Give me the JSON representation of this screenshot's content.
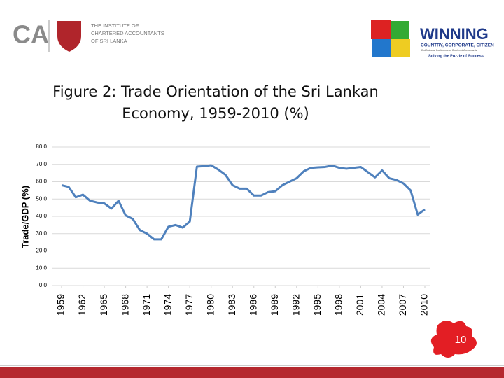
{
  "header": {
    "logo_left": "CA",
    "institute": [
      "THE INSTITUTE OF",
      "CHARTERED ACCOUNTANTS",
      "OF SRI LANKA"
    ],
    "logo_right": "WINNING",
    "tagline": "COUNTRY, CORPORATE, CITIZEN",
    "conference": "33rd National Conference of Chartered Accountants",
    "slogan": "Solving the Puzzle of Success"
  },
  "page_number": "10",
  "chart_data": {
    "type": "line",
    "title": "Figure 2: Trade Orientation of the Sri Lankan Economy, 1959-2010  (%)",
    "y_label": "Trade/GDP  (%)",
    "x": [
      1959,
      1960,
      1961,
      1962,
      1963,
      1964,
      1965,
      1966,
      1967,
      1968,
      1969,
      1970,
      1971,
      1972,
      1973,
      1974,
      1975,
      1976,
      1977,
      1978,
      1979,
      1980,
      1981,
      1982,
      1983,
      1984,
      1985,
      1986,
      1987,
      1988,
      1989,
      1990,
      1991,
      1992,
      1993,
      1994,
      1995,
      1996,
      1997,
      1998,
      1999,
      2000,
      2001,
      2002,
      2003,
      2004,
      2005,
      2006,
      2007,
      2008,
      2009,
      2010
    ],
    "series": [
      {
        "name": "Trade/GDP",
        "color": "#4f81bd",
        "values": [
          58,
          57,
          51,
          52.5,
          49,
          48,
          47.5,
          44.5,
          49,
          40.5,
          38.5,
          32,
          30,
          26.7,
          26.7,
          34,
          35,
          33.5,
          37,
          68.7,
          69,
          69.5,
          67,
          64,
          58,
          56,
          56,
          52,
          52,
          54,
          54.5,
          58,
          60,
          62,
          66,
          68,
          68.3,
          68.5,
          69.3,
          68,
          67.5,
          68,
          68.5,
          65.5,
          62.5,
          66.5,
          62,
          61,
          59,
          55,
          41,
          44
        ]
      }
    ],
    "xlim": [
      1959,
      2010
    ],
    "xticks": [
      1959,
      1962,
      1965,
      1968,
      1971,
      1974,
      1977,
      1980,
      1983,
      1986,
      1989,
      1992,
      1995,
      1998,
      2001,
      2004,
      2007,
      2010
    ],
    "ylim": [
      0,
      80
    ],
    "yticks": [
      {
        "value": 0,
        "label": "0.0"
      },
      {
        "value": 10,
        "label": "10.0"
      },
      {
        "value": 20,
        "label": "20.0"
      },
      {
        "value": 30,
        "label": "30.0"
      },
      {
        "value": 40,
        "label": "40.0"
      },
      {
        "value": 50,
        "label": "50.0"
      },
      {
        "value": 60,
        "label": "60.0"
      },
      {
        "value": 70,
        "label": "70.0"
      },
      {
        "value": 80,
        "label": "80.0"
      }
    ],
    "grid": true
  }
}
